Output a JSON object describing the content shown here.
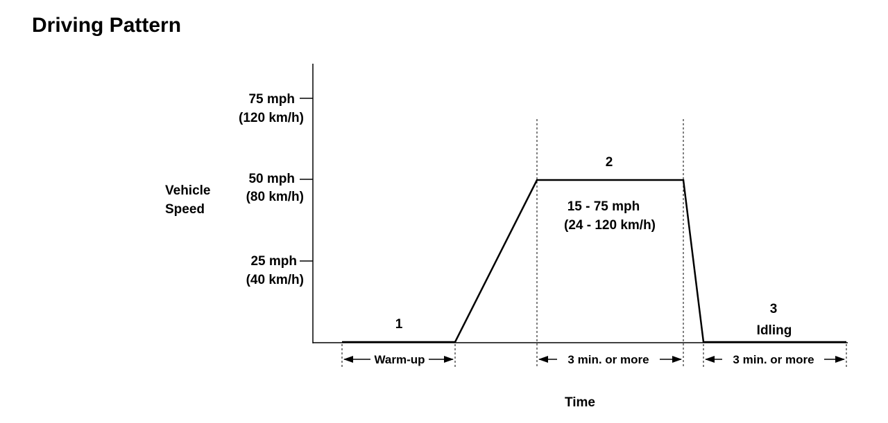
{
  "title": "Driving Pattern",
  "y_axis": {
    "label_line1": "Vehicle",
    "label_line2": "Speed",
    "ticks": [
      {
        "mph": "75 mph",
        "kmh": "(120 km/h)"
      },
      {
        "mph": "50 mph",
        "kmh": "(80 km/h)"
      },
      {
        "mph": "25 mph",
        "kmh": "(40 km/h)"
      }
    ]
  },
  "x_axis": {
    "label": "Time"
  },
  "phases": {
    "p1": {
      "number": "1",
      "duration": "Warm-up"
    },
    "p2": {
      "number": "2",
      "range_line1": "15 - 75 mph",
      "range_line2": "(24 - 120 km/h)",
      "duration": "3 min. or  more"
    },
    "p3": {
      "number": "3",
      "note": "Idling",
      "duration": "3 min. or  more"
    }
  },
  "colors": {
    "ink": "#000000",
    "background": "#ffffff"
  }
}
